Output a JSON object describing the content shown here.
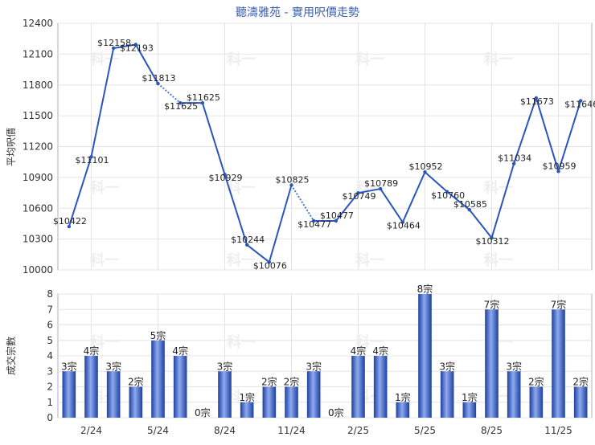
{
  "chart_data": {
    "type": "line",
    "title": "聽濤雅苑 - 實用呎價走勢",
    "x_tick_labels": [
      "2/24",
      "5/24",
      "8/24",
      "11/24",
      "2/25",
      "5/25",
      "8/25",
      "11/25"
    ],
    "price_panel": {
      "ylabel": "平均呎價",
      "ylim": [
        10000,
        12400
      ],
      "yticks": [
        10000,
        10300,
        10600,
        10900,
        11200,
        11500,
        11800,
        12100,
        12400
      ],
      "series": [
        {
          "values": [
            10422,
            11101,
            12158,
            12193,
            11813,
            11625,
            11625,
            10929,
            10244,
            10076,
            10825,
            10477,
            10477,
            10749,
            10789,
            10464,
            10952,
            10760,
            10585,
            10312,
            11034,
            11673,
            10959,
            11646
          ],
          "labels": [
            "$10422",
            "$11101",
            "$12158",
            "$12193",
            "$11813",
            "$11625",
            "$11625",
            "$10929",
            "$10244",
            "$10076",
            "$10825",
            "$10477",
            "$10477",
            "$10749",
            "$10789",
            "$10464",
            "$10952",
            "$10760",
            "$10585",
            "$10312",
            "$11034",
            "$11673",
            "$10959",
            "$11646"
          ],
          "no_transaction_months": [
            5,
            11
          ]
        }
      ]
    },
    "volume_panel": {
      "type": "bar",
      "ylabel": "成交宗數",
      "ylim": [
        0,
        8
      ],
      "yticks": [
        0,
        1,
        2,
        3,
        4,
        5,
        6,
        7,
        8
      ],
      "values": [
        3,
        4,
        3,
        2,
        5,
        4,
        0,
        3,
        1,
        2,
        2,
        3,
        0,
        4,
        4,
        1,
        8,
        3,
        1,
        7,
        3,
        2,
        7,
        2
      ],
      "labels": [
        "3宗",
        "4宗",
        "3宗",
        "2宗",
        "5宗",
        "4宗",
        "0宗",
        "3宗",
        "1宗",
        "2宗",
        "2宗",
        "3宗",
        "0宗",
        "4宗",
        "4宗",
        "1宗",
        "8宗",
        "3宗",
        "1宗",
        "7宗",
        "3宗",
        "2宗",
        "7宗",
        "2宗"
      ]
    },
    "colors": {
      "line": "#2a55c0",
      "dashed_segment": "#4a78e0",
      "bar_dark": "#1e3f9e",
      "bar_light": "#8eaaf0",
      "grid": "#e4e4e4",
      "title": "#3a5fb0",
      "watermark": "#eeeeee"
    },
    "grid": true,
    "watermark": "科一"
  }
}
